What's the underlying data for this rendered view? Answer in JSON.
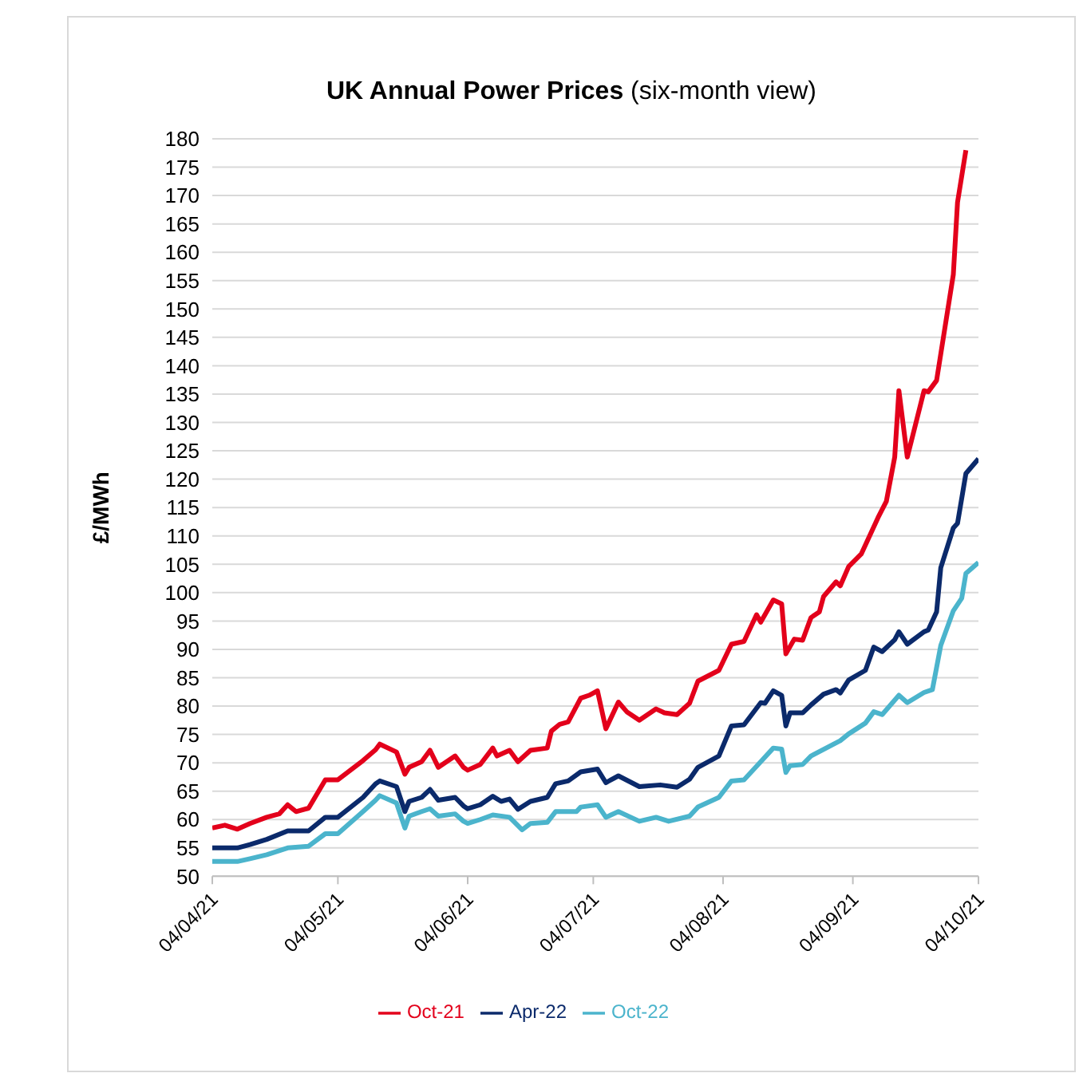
{
  "chart_data": {
    "type": "line",
    "title": "UK Annual Power Prices",
    "subtitle": "(six-month view)",
    "ylabel": "£/MWh",
    "xlim": [
      "2021-04-04",
      "2021-10-04"
    ],
    "xticks": [
      {
        "value": "2021-04-04",
        "label": "04/04/21"
      },
      {
        "value": "2021-05-04",
        "label": "04/05/21"
      },
      {
        "value": "2021-06-04",
        "label": "04/06/21"
      },
      {
        "value": "2021-07-04",
        "label": "04/07/21"
      },
      {
        "value": "2021-08-04",
        "label": "04/08/21"
      },
      {
        "value": "2021-09-04",
        "label": "04/09/21"
      },
      {
        "value": "2021-10-04",
        "label": "04/10/21"
      }
    ],
    "ylim": [
      50,
      180
    ],
    "yticks": [
      50,
      55,
      60,
      65,
      70,
      75,
      80,
      85,
      90,
      95,
      100,
      105,
      110,
      115,
      120,
      125,
      130,
      135,
      140,
      145,
      150,
      155,
      160,
      165,
      170,
      175,
      180
    ],
    "grid": "y",
    "legend": "bottom",
    "marker": "none",
    "line_style": "solid",
    "series": [
      {
        "name": "Oct-21",
        "color": "#e3001b",
        "x": [
          "2021-04-04",
          "2021-04-07",
          "2021-04-10",
          "2021-04-13",
          "2021-04-17",
          "2021-04-20",
          "2021-04-22",
          "2021-04-24",
          "2021-04-27",
          "2021-05-01",
          "2021-05-04",
          "2021-05-07",
          "2021-05-10",
          "2021-05-13",
          "2021-05-14",
          "2021-05-18",
          "2021-05-20",
          "2021-05-21",
          "2021-05-24",
          "2021-05-26",
          "2021-05-28",
          "2021-06-01",
          "2021-06-03",
          "2021-06-04",
          "2021-06-07",
          "2021-06-10",
          "2021-06-11",
          "2021-06-14",
          "2021-06-16",
          "2021-06-19",
          "2021-06-23",
          "2021-06-24",
          "2021-06-26",
          "2021-06-28",
          "2021-07-01",
          "2021-07-03",
          "2021-07-05",
          "2021-07-07",
          "2021-07-10",
          "2021-07-12",
          "2021-07-15",
          "2021-07-19",
          "2021-07-21",
          "2021-07-24",
          "2021-07-27",
          "2021-07-29",
          "2021-08-03",
          "2021-08-06",
          "2021-08-09",
          "2021-08-12",
          "2021-08-13",
          "2021-08-16",
          "2021-08-18",
          "2021-08-19",
          "2021-08-21",
          "2021-08-23",
          "2021-08-25",
          "2021-08-27",
          "2021-08-28",
          "2021-08-31",
          "2021-09-01",
          "2021-09-03",
          "2021-09-06",
          "2021-09-10",
          "2021-09-12",
          "2021-09-13",
          "2021-09-14",
          "2021-09-15",
          "2021-09-17",
          "2021-09-18",
          "2021-09-21",
          "2021-09-22",
          "2021-09-24",
          "2021-09-28",
          "2021-09-29",
          "2021-10-01"
        ],
        "values": [
          58.5,
          59,
          58.3,
          59.3,
          60.4,
          61,
          62.6,
          61.4,
          62,
          67,
          67,
          68.7,
          70.4,
          72.3,
          73.3,
          71.9,
          68,
          69.2,
          70.2,
          72.2,
          69.2,
          71.2,
          69.2,
          68.7,
          69.7,
          72.6,
          71.2,
          72.2,
          70.2,
          72.2,
          72.6,
          75.6,
          76.8,
          77.2,
          81.4,
          81.9,
          82.7,
          76,
          80.7,
          79,
          77.5,
          79.5,
          78.8,
          78.5,
          80.5,
          84.4,
          86.3,
          90.9,
          91.4,
          96.1,
          94.8,
          98.7,
          98,
          89.2,
          91.8,
          91.6,
          95.6,
          96.6,
          99.3,
          101.9,
          101.2,
          104.6,
          106.8,
          113.2,
          116.1,
          120,
          123.9,
          135.6,
          123.9,
          126.8,
          135.6,
          135.4,
          137.4,
          156.1,
          168.8,
          178
        ]
      },
      {
        "name": "Apr-22",
        "color": "#0b2a6b",
        "x": [
          "2021-04-04",
          "2021-04-10",
          "2021-04-13",
          "2021-04-17",
          "2021-04-22",
          "2021-04-27",
          "2021-05-01",
          "2021-05-04",
          "2021-05-10",
          "2021-05-13",
          "2021-05-14",
          "2021-05-18",
          "2021-05-20",
          "2021-05-21",
          "2021-05-24",
          "2021-05-26",
          "2021-05-28",
          "2021-06-01",
          "2021-06-03",
          "2021-06-04",
          "2021-06-07",
          "2021-06-10",
          "2021-06-12",
          "2021-06-14",
          "2021-06-16",
          "2021-06-19",
          "2021-06-23",
          "2021-06-25",
          "2021-06-28",
          "2021-07-01",
          "2021-07-05",
          "2021-07-07",
          "2021-07-10",
          "2021-07-15",
          "2021-07-20",
          "2021-07-24",
          "2021-07-27",
          "2021-07-29",
          "2021-08-03",
          "2021-08-06",
          "2021-08-09",
          "2021-08-13",
          "2021-08-14",
          "2021-08-16",
          "2021-08-18",
          "2021-08-19",
          "2021-08-20",
          "2021-08-23",
          "2021-08-25",
          "2021-08-28",
          "2021-08-31",
          "2021-09-01",
          "2021-09-03",
          "2021-09-07",
          "2021-09-09",
          "2021-09-11",
          "2021-09-14",
          "2021-09-15",
          "2021-09-17",
          "2021-09-21",
          "2021-09-22",
          "2021-09-24",
          "2021-09-25",
          "2021-09-28",
          "2021-09-29",
          "2021-10-01",
          "2021-10-04"
        ],
        "values": [
          55,
          55,
          55.6,
          56.5,
          58,
          58,
          60.4,
          60.4,
          63.9,
          66.3,
          66.8,
          65.8,
          61.4,
          63.2,
          63.9,
          65.3,
          63.4,
          63.9,
          62.4,
          61.9,
          62.6,
          64.1,
          63.2,
          63.6,
          61.8,
          63.2,
          63.9,
          66.3,
          66.8,
          68.4,
          68.9,
          66.5,
          67.7,
          65.8,
          66.1,
          65.7,
          67.1,
          69.2,
          71.2,
          76.5,
          76.7,
          80.6,
          80.5,
          82.7,
          81.9,
          76.5,
          78.8,
          78.8,
          80.2,
          82.1,
          82.9,
          82.3,
          84.6,
          86.3,
          90.4,
          89.6,
          91.7,
          93.1,
          90.9,
          93.1,
          93.4,
          96.6,
          104.4,
          111.4,
          112.2,
          121,
          123.6
        ]
      },
      {
        "name": "Oct-22",
        "color": "#4bb4cc",
        "x": [
          "2021-04-04",
          "2021-04-10",
          "2021-04-13",
          "2021-04-17",
          "2021-04-22",
          "2021-04-27",
          "2021-05-01",
          "2021-05-04",
          "2021-05-10",
          "2021-05-13",
          "2021-05-14",
          "2021-05-18",
          "2021-05-20",
          "2021-05-21",
          "2021-05-24",
          "2021-05-26",
          "2021-05-28",
          "2021-06-01",
          "2021-06-03",
          "2021-06-04",
          "2021-06-07",
          "2021-06-10",
          "2021-06-14",
          "2021-06-17",
          "2021-06-19",
          "2021-06-23",
          "2021-06-25",
          "2021-06-30",
          "2021-07-01",
          "2021-07-05",
          "2021-07-07",
          "2021-07-10",
          "2021-07-15",
          "2021-07-19",
          "2021-07-22",
          "2021-07-27",
          "2021-07-29",
          "2021-08-03",
          "2021-08-06",
          "2021-08-09",
          "2021-08-13",
          "2021-08-16",
          "2021-08-18",
          "2021-08-19",
          "2021-08-20",
          "2021-08-23",
          "2021-08-25",
          "2021-09-01",
          "2021-09-03",
          "2021-09-07",
          "2021-09-09",
          "2021-09-11",
          "2021-09-15",
          "2021-09-17",
          "2021-09-21",
          "2021-09-23",
          "2021-09-25",
          "2021-09-28",
          "2021-09-30",
          "2021-10-01",
          "2021-10-04"
        ],
        "values": [
          52.6,
          52.6,
          53.1,
          53.8,
          55,
          55.3,
          57.5,
          57.5,
          61.4,
          63.4,
          64.2,
          62.9,
          58.5,
          60.6,
          61.4,
          61.9,
          60.6,
          61,
          59.7,
          59.3,
          60,
          60.8,
          60.4,
          58.2,
          59.3,
          59.5,
          61.4,
          61.4,
          62.2,
          62.6,
          60.4,
          61.4,
          59.7,
          60.4,
          59.7,
          60.6,
          62.2,
          63.9,
          66.8,
          67,
          70.2,
          72.6,
          72.4,
          68.3,
          69.5,
          69.7,
          71.2,
          73.9,
          75.1,
          77,
          79,
          78.5,
          81.9,
          80.6,
          82.4,
          82.9,
          90.7,
          96.8,
          99,
          103.4,
          105.3
        ]
      }
    ]
  }
}
